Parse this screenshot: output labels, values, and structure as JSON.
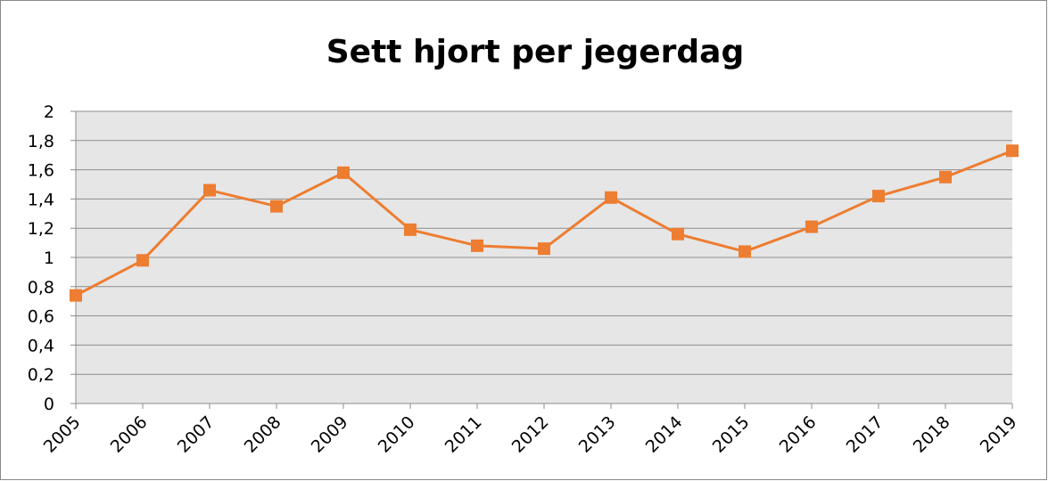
{
  "chart_data": {
    "type": "line",
    "title": "Sett hjort per jegerdag",
    "categories": [
      "2005",
      "2006",
      "2007",
      "2008",
      "2009",
      "2010",
      "2011",
      "2012",
      "2013",
      "2014",
      "2015",
      "2016",
      "2017",
      "2018",
      "2019"
    ],
    "series": [
      {
        "name": "Sett hjort per jegerdag",
        "color": "#ed7d31",
        "values": [
          0.74,
          0.98,
          1.46,
          1.35,
          1.58,
          1.19,
          1.08,
          1.06,
          1.41,
          1.16,
          1.04,
          1.21,
          1.42,
          1.55,
          1.73
        ]
      }
    ],
    "ylim": [
      0,
      2
    ],
    "yticks": [
      0,
      {
        "value": 0.2,
        "label": "0,2"
      },
      {
        "value": 0.4,
        "label": "0,4"
      },
      {
        "value": 0.6,
        "label": "0,6"
      },
      {
        "value": 0.8,
        "label": "0,8"
      },
      1,
      {
        "value": 1.2,
        "label": "1,2"
      },
      {
        "value": 1.4,
        "label": "1,4"
      },
      {
        "value": 1.6,
        "label": "1,6"
      },
      {
        "value": 1.8,
        "label": "1,8"
      },
      2
    ],
    "grid": true
  }
}
